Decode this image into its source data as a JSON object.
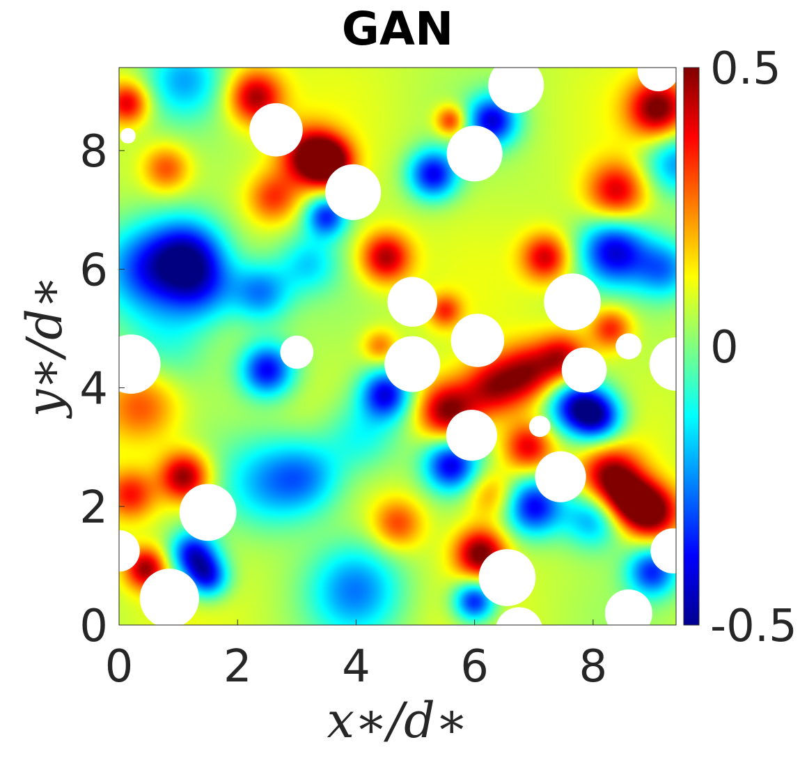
{
  "chart_data": {
    "type": "heatmap",
    "title": "GAN",
    "xlabel": "x∗/d∗",
    "ylabel": "y∗/d∗",
    "xlim": [
      0,
      9.4
    ],
    "ylim": [
      0,
      9.4
    ],
    "xticks": [
      "0",
      "2",
      "4",
      "6",
      "8"
    ],
    "yticks": [
      "0",
      "2",
      "4",
      "6",
      "8"
    ],
    "colormap": "jet",
    "colorbar": {
      "min": -0.5,
      "max": 0.5,
      "ticks": [
        "0.5",
        "0",
        "-0.5"
      ]
    },
    "particles": [
      {
        "x": 2.65,
        "y": 8.35,
        "r": 0.45
      },
      {
        "x": 3.95,
        "y": 7.3,
        "r": 0.47
      },
      {
        "x": 6.0,
        "y": 7.95,
        "r": 0.47
      },
      {
        "x": 6.7,
        "y": 9.1,
        "r": 0.47
      },
      {
        "x": 0.15,
        "y": 8.25,
        "r": 0.13
      },
      {
        "x": 9.1,
        "y": 9.35,
        "r": 0.35
      },
      {
        "x": 4.95,
        "y": 5.45,
        "r": 0.42
      },
      {
        "x": 7.65,
        "y": 5.45,
        "r": 0.48
      },
      {
        "x": 6.05,
        "y": 4.8,
        "r": 0.45
      },
      {
        "x": 3.0,
        "y": 4.6,
        "r": 0.28
      },
      {
        "x": 4.95,
        "y": 4.4,
        "r": 0.47
      },
      {
        "x": 7.85,
        "y": 4.3,
        "r": 0.38
      },
      {
        "x": 8.6,
        "y": 4.7,
        "r": 0.22
      },
      {
        "x": 0.2,
        "y": 4.4,
        "r": 0.5
      },
      {
        "x": 9.4,
        "y": 4.4,
        "r": 0.45
      },
      {
        "x": 7.1,
        "y": 3.35,
        "r": 0.18
      },
      {
        "x": 5.95,
        "y": 3.2,
        "r": 0.43
      },
      {
        "x": 7.45,
        "y": 2.5,
        "r": 0.43
      },
      {
        "x": 1.5,
        "y": 1.9,
        "r": 0.48
      },
      {
        "x": 0.0,
        "y": 1.25,
        "r": 0.35
      },
      {
        "x": 9.35,
        "y": 1.25,
        "r": 0.38
      },
      {
        "x": 0.85,
        "y": 0.45,
        "r": 0.5
      },
      {
        "x": 6.55,
        "y": 0.8,
        "r": 0.48
      },
      {
        "x": 6.75,
        "y": -0.1,
        "r": 0.4
      },
      {
        "x": 8.6,
        "y": 0.2,
        "r": 0.4
      }
    ],
    "features": [
      {
        "x": 2.3,
        "y": 8.9,
        "v": 0.4,
        "s": 0.32
      },
      {
        "x": 3.2,
        "y": 7.9,
        "v": 0.4,
        "s": 0.35
      },
      {
        "x": 3.55,
        "y": 7.8,
        "v": 0.45,
        "s": 0.28
      },
      {
        "x": 2.6,
        "y": 7.2,
        "v": 0.25,
        "s": 0.3
      },
      {
        "x": 0.8,
        "y": 7.7,
        "v": 0.25,
        "s": 0.28
      },
      {
        "x": 0.15,
        "y": 8.8,
        "v": 0.35,
        "s": 0.25
      },
      {
        "x": 5.6,
        "y": 8.5,
        "v": 0.3,
        "s": 0.18
      },
      {
        "x": 6.3,
        "y": 8.5,
        "v": -0.45,
        "s": 0.3
      },
      {
        "x": 5.3,
        "y": 7.6,
        "v": -0.45,
        "s": 0.3
      },
      {
        "x": 3.5,
        "y": 6.9,
        "v": -0.4,
        "s": 0.25
      },
      {
        "x": 8.4,
        "y": 7.3,
        "v": 0.35,
        "s": 0.35
      },
      {
        "x": 9.1,
        "y": 8.7,
        "v": 0.45,
        "s": 0.35
      },
      {
        "x": 9.4,
        "y": 7.8,
        "v": -0.3,
        "s": 0.4
      },
      {
        "x": 1.1,
        "y": 9.2,
        "v": -0.25,
        "s": 0.45
      },
      {
        "x": 0.5,
        "y": 6.0,
        "v": -0.4,
        "s": 0.55
      },
      {
        "x": 1.2,
        "y": 6.3,
        "v": -0.35,
        "s": 0.45
      },
      {
        "x": 1.4,
        "y": 5.7,
        "v": -0.3,
        "s": 0.45
      },
      {
        "x": 2.4,
        "y": 5.6,
        "v": -0.3,
        "s": 0.35
      },
      {
        "x": 3.2,
        "y": 6.1,
        "v": -0.2,
        "s": 0.35
      },
      {
        "x": 4.5,
        "y": 6.2,
        "v": 0.4,
        "s": 0.3
      },
      {
        "x": 7.2,
        "y": 6.2,
        "v": 0.35,
        "s": 0.28
      },
      {
        "x": 8.35,
        "y": 6.3,
        "v": -0.45,
        "s": 0.4
      },
      {
        "x": 9.2,
        "y": 6.0,
        "v": -0.3,
        "s": 0.35
      },
      {
        "x": 5.5,
        "y": 5.3,
        "v": 0.25,
        "s": 0.2
      },
      {
        "x": 8.3,
        "y": 5.0,
        "v": 0.3,
        "s": 0.25
      },
      {
        "x": 2.5,
        "y": 4.3,
        "v": -0.45,
        "s": 0.32
      },
      {
        "x": 4.4,
        "y": 4.7,
        "v": 0.2,
        "s": 0.2
      },
      {
        "x": 4.5,
        "y": 3.9,
        "v": -0.45,
        "s": 0.3
      },
      {
        "x": 5.55,
        "y": 3.6,
        "v": 0.45,
        "s": 0.35
      },
      {
        "x": 6.3,
        "y": 4.0,
        "v": 0.35,
        "s": 0.35
      },
      {
        "x": 6.9,
        "y": 4.25,
        "v": 0.35,
        "s": 0.35
      },
      {
        "x": 7.5,
        "y": 4.5,
        "v": 0.35,
        "s": 0.3
      },
      {
        "x": 6.9,
        "y": 3.0,
        "v": 0.35,
        "s": 0.3
      },
      {
        "x": 7.7,
        "y": 3.7,
        "v": -0.45,
        "s": 0.35
      },
      {
        "x": 8.1,
        "y": 3.5,
        "v": -0.4,
        "s": 0.3
      },
      {
        "x": 5.6,
        "y": 2.7,
        "v": -0.45,
        "s": 0.32
      },
      {
        "x": 7.0,
        "y": 2.0,
        "v": -0.45,
        "s": 0.35
      },
      {
        "x": 8.3,
        "y": 2.5,
        "v": 0.4,
        "s": 0.35
      },
      {
        "x": 8.6,
        "y": 2.1,
        "v": 0.35,
        "s": 0.3
      },
      {
        "x": 9.0,
        "y": 1.9,
        "v": 0.45,
        "s": 0.32
      },
      {
        "x": 8.0,
        "y": 1.8,
        "v": -0.3,
        "s": 0.35
      },
      {
        "x": 1.1,
        "y": 2.5,
        "v": 0.45,
        "s": 0.3
      },
      {
        "x": 0.2,
        "y": 2.2,
        "v": 0.3,
        "s": 0.3
      },
      {
        "x": 0.4,
        "y": 3.7,
        "v": 0.25,
        "s": 0.45
      },
      {
        "x": 1.25,
        "y": 1.2,
        "v": -0.45,
        "s": 0.28
      },
      {
        "x": 1.5,
        "y": 0.8,
        "v": -0.4,
        "s": 0.25
      },
      {
        "x": 0.45,
        "y": 0.95,
        "v": 0.4,
        "s": 0.25
      },
      {
        "x": 2.5,
        "y": 2.4,
        "v": -0.25,
        "s": 0.55
      },
      {
        "x": 3.2,
        "y": 2.5,
        "v": -0.25,
        "s": 0.45
      },
      {
        "x": 4.1,
        "y": 3.2,
        "v": -0.2,
        "s": 0.45
      },
      {
        "x": 4.7,
        "y": 1.7,
        "v": 0.25,
        "s": 0.3
      },
      {
        "x": 4.0,
        "y": 0.6,
        "v": -0.3,
        "s": 0.55
      },
      {
        "x": 6.1,
        "y": 1.2,
        "v": 0.45,
        "s": 0.3
      },
      {
        "x": 6.0,
        "y": 0.4,
        "v": -0.45,
        "s": 0.25
      },
      {
        "x": 9.0,
        "y": 0.9,
        "v": -0.4,
        "s": 0.3
      },
      {
        "x": 6.3,
        "y": 2.2,
        "v": 0.2,
        "s": 0.3
      },
      {
        "x": 0.8,
        "y": 4.7,
        "v": -0.15,
        "s": 0.55
      }
    ]
  }
}
